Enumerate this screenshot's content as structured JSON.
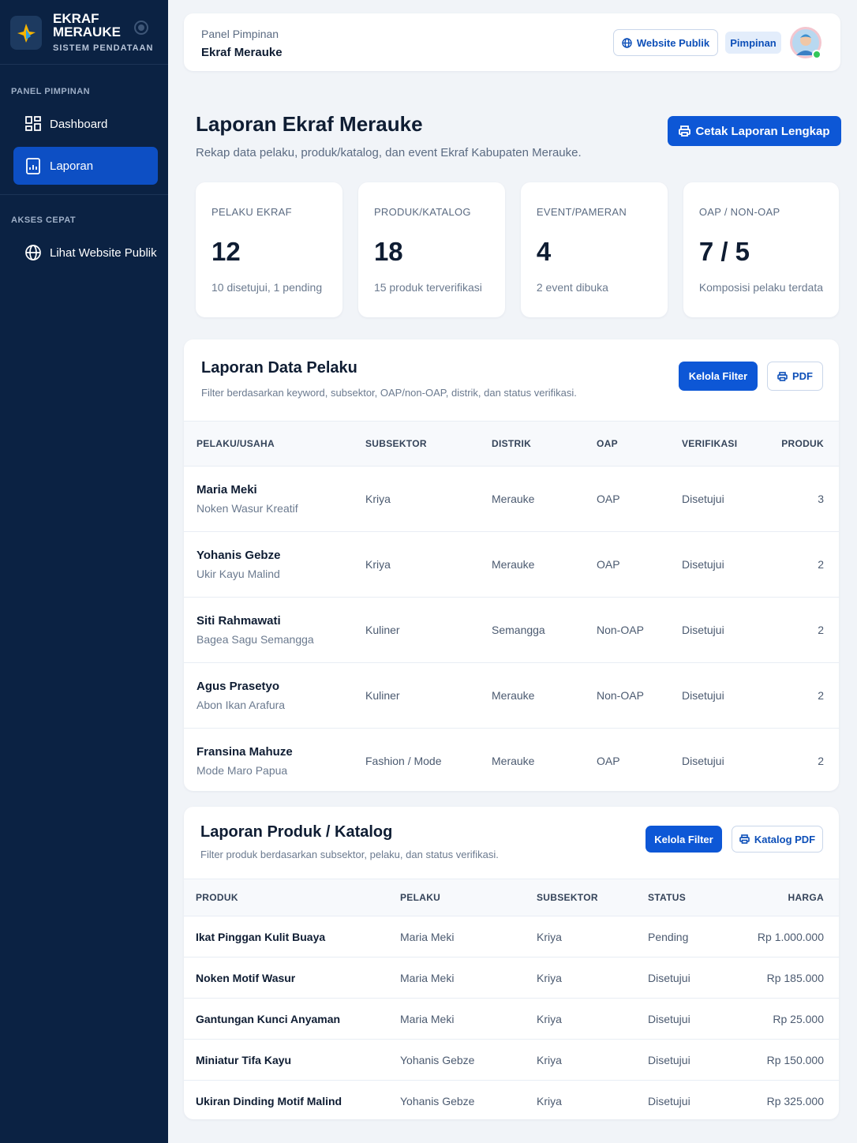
{
  "sidebar": {
    "brand": {
      "line1": "EKRAF",
      "line2": "MERAUKE",
      "subtitle": "SISTEM PENDATAAN"
    },
    "sections": [
      {
        "heading": "PANEL PIMPINAN",
        "items": [
          "Dashboard",
          "Laporan"
        ]
      },
      {
        "heading": "AKSES CEPAT",
        "items": [
          "Lihat Website Publik"
        ]
      }
    ]
  },
  "topbar": {
    "label": "Panel Pimpinan",
    "title": "Ekraf Merauke",
    "website_button": "Website Publik",
    "role": "Pimpinan"
  },
  "header": {
    "title": "Laporan Ekraf Merauke",
    "subtitle": "Rekap data pelaku, produk/katalog, dan event Ekraf Kabupaten Merauke.",
    "print_button": "Cetak Laporan Lengkap"
  },
  "stats": [
    {
      "label": "PELAKU EKRAF",
      "value": 12,
      "note": "10 disetujui, 1 pending"
    },
    {
      "label": "PRODUK/KATALOG",
      "value": 18,
      "note": "15 produk terverifikasi"
    },
    {
      "label": "EVENT/PAMERAN",
      "value": 4,
      "note": "2 event dibuka"
    },
    {
      "label": "OAP / NON-OAP",
      "value": "7 / 5",
      "note": "Komposisi pelaku terdata"
    }
  ],
  "pelaku_report": {
    "title": "Laporan Data Pelaku",
    "subtitle": "Filter berdasarkan keyword, subsektor, OAP/non-OAP, distrik, dan status verifikasi.",
    "filter_button": "Kelola Filter",
    "pdf_button": "PDF",
    "columns": [
      "PELAKU/USAHA",
      "SUBSEKTOR",
      "DISTRIK",
      "OAP",
      "VERIFIKASI",
      "PRODUK"
    ],
    "rows": [
      [
        [
          "Maria Meki",
          "Noken Wasur Kreatif"
        ],
        "Kriya",
        "Merauke",
        "OAP",
        "Disetujui",
        3
      ],
      [
        [
          "Yohanis Gebze",
          "Ukir Kayu Malind"
        ],
        "Kriya",
        "Merauke",
        "OAP",
        "Disetujui",
        2
      ],
      [
        [
          "Siti Rahmawati",
          "Bagea Sagu Semangga"
        ],
        "Kuliner",
        "Semangga",
        "Non-OAP",
        "Disetujui",
        2
      ],
      [
        [
          "Agus Prasetyo",
          "Abon Ikan Arafura"
        ],
        "Kuliner",
        "Merauke",
        "Non-OAP",
        "Disetujui",
        2
      ],
      [
        [
          "Fransina Mahuze",
          "Mode Maro Papua"
        ],
        "Fashion / Mode",
        "Merauke",
        "OAP",
        "Disetujui",
        2
      ]
    ]
  },
  "produk_report": {
    "title": "Laporan Produk / Katalog",
    "subtitle": "Filter produk berdasarkan subsektor, pelaku, dan status verifikasi.",
    "filter_button": "Kelola Filter",
    "pdf_button": "Katalog PDF",
    "columns": [
      "PRODUK",
      "PELAKU",
      "SUBSEKTOR",
      "STATUS",
      "HARGA"
    ],
    "rows": [
      [
        "Ikat Pinggan Kulit Buaya",
        "Maria Meki",
        "Kriya",
        "Pending",
        "Rp 1.000.000"
      ],
      [
        "Noken Motif Wasur",
        "Maria Meki",
        "Kriya",
        "Disetujui",
        "Rp 185.000"
      ],
      [
        "Gantungan Kunci Anyaman",
        "Maria Meki",
        "Kriya",
        "Disetujui",
        "Rp 25.000"
      ],
      [
        "Miniatur Tifa Kayu",
        "Yohanis Gebze",
        "Kriya",
        "Disetujui",
        "Rp 150.000"
      ],
      [
        "Ukiran Dinding Motif Malind",
        "Yohanis Gebze",
        "Kriya",
        "Disetujui",
        "Rp 325.000"
      ]
    ]
  }
}
